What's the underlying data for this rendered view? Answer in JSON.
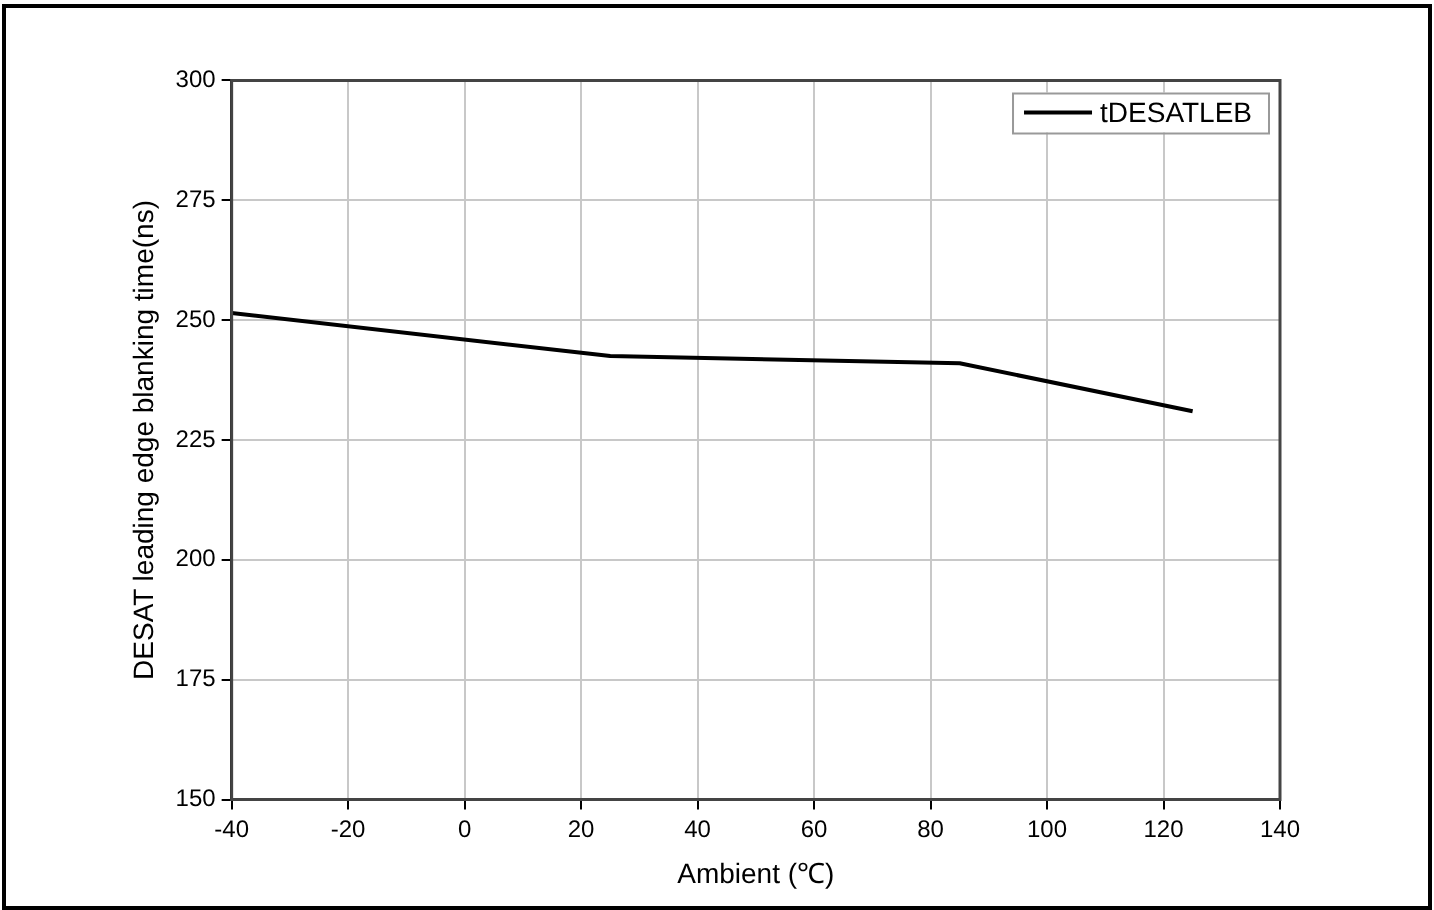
{
  "chart_data": {
    "type": "line",
    "xlabel": "Ambient (℃)",
    "ylabel": "DESAT leading edge blanking time(ns)",
    "x": [
      -40,
      25,
      85,
      125
    ],
    "series": [
      {
        "name": "tDESATLEB",
        "color": "#000000",
        "values": [
          251.5,
          242.5,
          241,
          231
        ]
      }
    ],
    "xlim": [
      -40,
      140
    ],
    "xticks": [
      -40,
      -20,
      0,
      20,
      40,
      60,
      80,
      100,
      120,
      140
    ],
    "ylim": [
      150,
      300
    ],
    "yticks": [
      150,
      175,
      200,
      225,
      250,
      275,
      300
    ],
    "grid": true,
    "legend": "top right",
    "marker": "none",
    "line_style": "solid"
  }
}
